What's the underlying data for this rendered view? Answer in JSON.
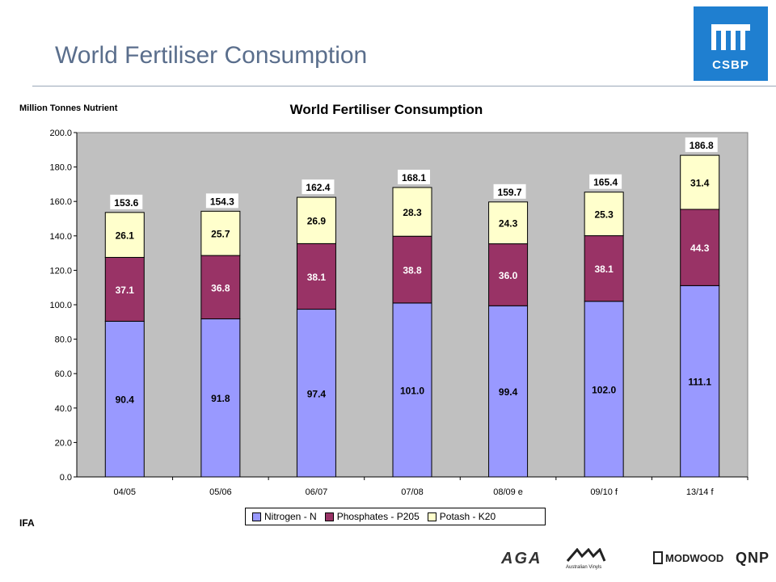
{
  "slide": {
    "title": "World Fertiliser Consumption",
    "source": "IFA",
    "logo_text": "CSBP",
    "footer_logos": [
      "AGA",
      "Australian Vinyls",
      "MODWOOD",
      "QNP"
    ]
  },
  "chart_data": {
    "type": "bar",
    "stacked": true,
    "title": "World Fertiliser Consumption",
    "ylabel": "Million Tonnes Nutrient",
    "xlabel": "",
    "ylim": [
      0,
      200
    ],
    "yticks": [
      "0.0",
      "20.0",
      "40.0",
      "60.0",
      "80.0",
      "100.0",
      "120.0",
      "140.0",
      "160.0",
      "180.0",
      "200.0"
    ],
    "grid": false,
    "legend_position": "bottom",
    "categories": [
      "04/05",
      "05/06",
      "06/07",
      "07/08",
      "08/09 e",
      "09/10 f",
      "13/14 f"
    ],
    "series": [
      {
        "name": "Nitrogen - N",
        "color": "#9999ff",
        "values": [
          90.4,
          91.8,
          97.4,
          101.0,
          99.4,
          102.0,
          111.1
        ],
        "labels": [
          "90.4",
          "91.8",
          "97.4",
          "101.0",
          "99.4",
          "102.0",
          "111.1"
        ]
      },
      {
        "name": "Phosphates - P205",
        "color": "#993366",
        "values": [
          37.1,
          36.8,
          38.1,
          38.8,
          36.0,
          38.1,
          44.3
        ],
        "labels": [
          "37.1",
          "36.8",
          "38.1",
          "38.8",
          "36.0",
          "38.1",
          "44.3"
        ]
      },
      {
        "name": "Potash - K20",
        "color": "#ffffcc",
        "values": [
          26.1,
          25.7,
          26.9,
          28.3,
          24.3,
          25.3,
          31.4
        ],
        "labels": [
          "26.1",
          "25.7",
          "26.9",
          "28.3",
          "24.3",
          "25.3",
          "31.4"
        ]
      }
    ],
    "totals": [
      "153.6",
      "154.3",
      "162.4",
      "168.1",
      "159.7",
      "165.4",
      "186.8"
    ],
    "plot_background": "#c0c0c0"
  }
}
